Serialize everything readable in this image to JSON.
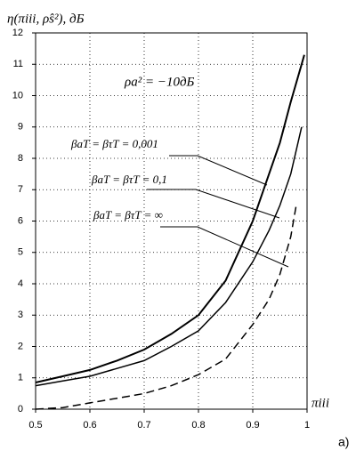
{
  "chart_data": {
    "type": "line",
    "title": "η(πiii, ρ̂s²), дБ",
    "x_label": "πiii",
    "panel_label": "a)",
    "annotations": [
      "ρa² = −10дБ",
      "βaT = βτT = 0,001",
      "βaT = βτT = 0,1",
      "βaT = βτT = ∞"
    ],
    "series": [
      {
        "name": "βaT = βτT = 0,001",
        "color": "#000000",
        "dash": false,
        "width": 2,
        "x": [
          0.5,
          0.55,
          0.6,
          0.65,
          0.7,
          0.75,
          0.8,
          0.85,
          0.9,
          0.93,
          0.95,
          0.97,
          0.99,
          0.995
        ],
        "values": [
          0.85,
          1.05,
          1.25,
          1.55,
          1.9,
          2.4,
          3.0,
          4.1,
          6.0,
          7.5,
          8.5,
          9.8,
          11.0,
          11.3
        ]
      },
      {
        "name": "βaT = βτT = 0,1",
        "color": "#000000",
        "dash": false,
        "width": 1.5,
        "x": [
          0.5,
          0.55,
          0.6,
          0.65,
          0.7,
          0.75,
          0.8,
          0.85,
          0.9,
          0.93,
          0.95,
          0.97,
          0.99
        ],
        "values": [
          0.75,
          0.9,
          1.05,
          1.3,
          1.55,
          2.0,
          2.5,
          3.4,
          4.7,
          5.7,
          6.5,
          7.5,
          9.0
        ]
      },
      {
        "name": "βaT = βτT = ∞",
        "color": "#000000",
        "dash": true,
        "width": 1.5,
        "x": [
          0.5,
          0.55,
          0.6,
          0.65,
          0.7,
          0.75,
          0.8,
          0.85,
          0.9,
          0.93,
          0.95,
          0.97,
          0.98
        ],
        "values": [
          0.0,
          0.05,
          0.2,
          0.35,
          0.5,
          0.75,
          1.1,
          1.6,
          2.7,
          3.5,
          4.3,
          5.5,
          6.5
        ]
      }
    ],
    "xlim": [
      0.5,
      1
    ],
    "xticks": [
      0.5,
      0.6,
      0.7,
      0.8,
      0.9,
      1
    ],
    "ylim": [
      0,
      12
    ],
    "yticks": [
      0,
      1,
      2,
      3,
      4,
      5,
      6,
      7,
      8,
      9,
      10,
      11,
      12
    ],
    "grid": true
  }
}
